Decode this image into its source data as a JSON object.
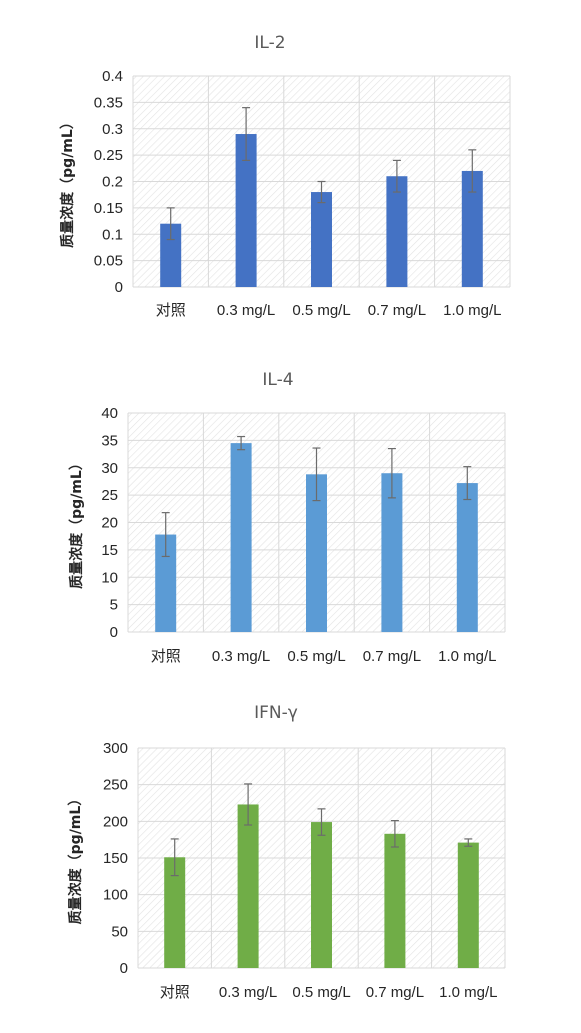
{
  "chart_data": [
    {
      "type": "bar",
      "title": "IL-2",
      "ylabel": "质量浓度（pg/mL）",
      "xlabel": "",
      "categories": [
        "对照",
        "0.3 mg/L",
        "0.5 mg/L",
        "0.7 mg/L",
        "1.0 mg/L"
      ],
      "values": [
        0.12,
        0.29,
        0.18,
        0.21,
        0.22
      ],
      "errors": [
        0.03,
        0.05,
        0.02,
        0.03,
        0.04
      ],
      "ylim": [
        0,
        0.4
      ],
      "yticks": [
        0,
        0.05,
        0.1,
        0.15,
        0.2,
        0.25,
        0.3,
        0.35,
        0.4
      ],
      "ytick_labels": [
        "0",
        "0.05",
        "0.1",
        "0.15",
        "0.2",
        "0.25",
        "0.3",
        "0.35",
        "0.4"
      ],
      "color": "#4472c4",
      "grid": true
    },
    {
      "type": "bar",
      "title": "IL-4",
      "ylabel": "质量浓度（pg/mL）",
      "xlabel": "",
      "categories": [
        "对照",
        "0.3 mg/L",
        "0.5 mg/L",
        "0.7 mg/L",
        "1.0 mg/L"
      ],
      "values": [
        17.8,
        34.5,
        28.8,
        29.0,
        27.2
      ],
      "errors": [
        4.0,
        1.2,
        4.8,
        4.5,
        3.0
      ],
      "ylim": [
        0,
        40
      ],
      "yticks": [
        0,
        5,
        10,
        15,
        20,
        25,
        30,
        35,
        40
      ],
      "ytick_labels": [
        "0",
        "5",
        "10",
        "15",
        "20",
        "25",
        "30",
        "35",
        "40"
      ],
      "color": "#5b9bd5",
      "grid": true
    },
    {
      "type": "bar",
      "title": "IFN-γ",
      "ylabel": "质量浓度（pg/mL）",
      "xlabel": "",
      "categories": [
        "对照",
        "0.3 mg/L",
        "0.5 mg/L",
        "0.7 mg/L",
        "1.0 mg/L"
      ],
      "values": [
        151,
        223,
        199,
        183,
        171
      ],
      "errors": [
        25,
        28,
        18,
        18,
        5
      ],
      "ylim": [
        0,
        300
      ],
      "yticks": [
        0,
        50,
        100,
        150,
        200,
        250,
        300
      ],
      "ytick_labels": [
        "0",
        "50",
        "100",
        "150",
        "200",
        "250",
        "300"
      ],
      "color": "#70ad47",
      "grid": true
    }
  ]
}
